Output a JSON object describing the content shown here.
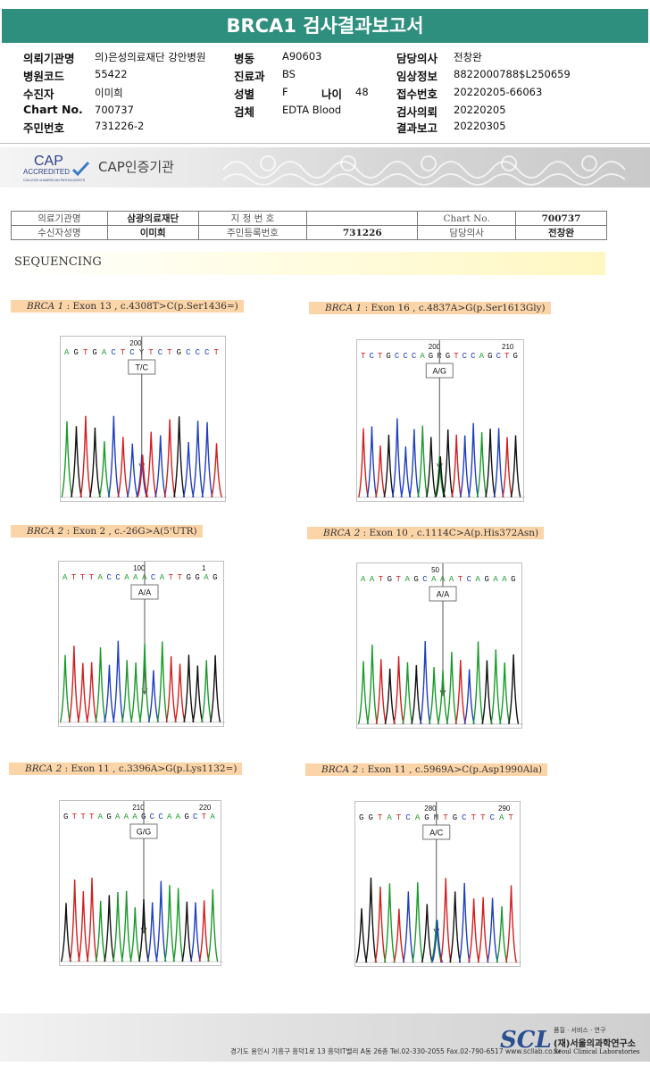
{
  "report": {
    "title": "BRCA1 검사결과보고서"
  },
  "info": {
    "col1": [
      {
        "label": "의뢰기관명",
        "value": "의)은성의료재단 강안병원"
      },
      {
        "label": "병원코드",
        "value": "55422"
      },
      {
        "label": "수진자",
        "value": "이미희"
      },
      {
        "label": "Chart No.",
        "value": "700737"
      },
      {
        "label": "주민번호",
        "value": "731226-2"
      }
    ],
    "col2": [
      {
        "label": "병동",
        "value": "A90603"
      },
      {
        "label": "진료과",
        "value": "BS"
      },
      {
        "label": "성별",
        "value": "F"
      },
      {
        "label": "검체",
        "value": "EDTA Blood"
      }
    ],
    "age": {
      "label": "나이",
      "value": "48"
    },
    "col3": [
      {
        "label": "담당의사",
        "value": "전창완"
      },
      {
        "label": "임상정보",
        "value": "8822000788$L250659"
      },
      {
        "label": "접수번호",
        "value": "20220205-66063"
      },
      {
        "label": "검사의뢰",
        "value": "20220205"
      },
      {
        "label": "결과보고",
        "value": "20220305"
      }
    ]
  },
  "cap": {
    "logo": "CAP",
    "accredited": "ACCREDITED",
    "college": "COLLEGE of AMERICAN PATHOLOGISTS",
    "label": "CAP인증기관"
  },
  "patient_table": {
    "r1": {
      "k1": "의료기관명",
      "v1": "삼광의료재단",
      "k2": "지 정 번 호",
      "v2": "",
      "k3": "Chart No.",
      "v3": "700737"
    },
    "r2": {
      "k1": "수신자성명",
      "v1": "이미희",
      "k2": "주민등록번호",
      "v2": "731226",
      "k3": "담당의사",
      "v3": "전창완"
    }
  },
  "sequencing": {
    "title": "SEQUENCING"
  },
  "panels": [
    {
      "gene": "BRCA 1",
      "desc": " : Exon 13 , c.4308T>C(p.Ser1436=)",
      "seq": "AGTGACTCYTCTGCCCT",
      "pos1": "200",
      "pos2": "",
      "call": "T/C"
    },
    {
      "gene": "BRCA 1",
      "desc": " : Exon 16 , c.4837A>G(p.Ser1613Gly)",
      "seq": "TCTGCCCAGRGTCCAGCTG",
      "pos1": "200",
      "pos2": "210",
      "call": "A/G"
    },
    {
      "gene": "BRCA 2",
      "desc": " : Exon 2 , c.-26G>A(5'UTR)",
      "seq": "ATTTACCAAACATTGGAG",
      "pos1": "100",
      "pos2": "1",
      "call": "A/A"
    },
    {
      "gene": "BRCA 2",
      "desc": " : Exon 10 , c.1114C>A(p.His372Asn)",
      "seq": "AATGTAGCAAATCAGAAG",
      "pos1": "50",
      "pos2": "",
      "call": "A/A"
    },
    {
      "gene": "BRCA 2",
      "desc": " : Exon 11 , c.3396A>G(p.Lys1132=)",
      "seq": "GTTTAGAAAGCCAAGCTA",
      "pos1": "210",
      "pos2": "220",
      "call": "G/G"
    },
    {
      "gene": "BRCA 2",
      "desc": " : Exon 11 , c.5969A>C(p.Asp1990Ala)",
      "seq": "GGTATCAGMTGCTTCAT",
      "pos1": "280",
      "pos2": "290",
      "call": "A/C"
    }
  ],
  "footer": {
    "address": "경기도 용인시 기흥구 흥덕1로 13 흥덕IT밸리 A동 26층  Tel.02-330-2055  Fax.02-790-6517  www.scllab.co.kr",
    "logo": "SCL",
    "tag": "품질 · 서비스 · 연구",
    "name": "(재)서울의과학연구소",
    "eng": "Seoul Clinical Laboratories"
  },
  "colors": {
    "A": "#1a9a2a",
    "C": "#1f3fbf",
    "G": "#111111",
    "T": "#d21f1f"
  }
}
